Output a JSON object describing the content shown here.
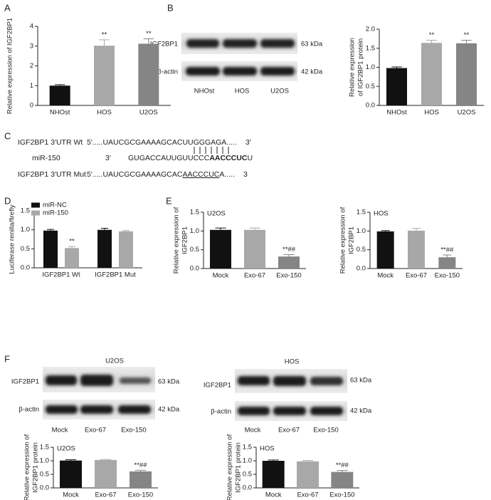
{
  "panel_labels": [
    "A",
    "B",
    "C",
    "D",
    "E",
    "F"
  ],
  "blot_b": {
    "rows": [
      "IGF2BP1",
      "β-actin"
    ],
    "sizes": [
      "63 kDa",
      "42 kDa"
    ],
    "lanes": [
      "NHOst",
      "HOS",
      "U2OS"
    ]
  },
  "blot_f": [
    {
      "title": "U2OS",
      "rows": [
        "IGF2BP1",
        "β-actin"
      ],
      "sizes": [
        "63 kDa",
        "42 kDa"
      ],
      "lanes": [
        "Mock",
        "Exo-67",
        "Exo-150"
      ]
    },
    {
      "title": "HOS",
      "rows": [
        "IGF2BP1",
        "β-actin"
      ],
      "sizes": [
        "63 kDa",
        "42 kDa"
      ],
      "lanes": [
        "Mock",
        "Exo-67",
        "Exo-150"
      ]
    }
  ],
  "sequences": {
    "wt": {
      "name": "IGF2BP1 3'UTR Wt",
      "five": "5'",
      "seq": ".....UAUCGCGAAAAGCACUUGGGAGA.....",
      "three": "3'"
    },
    "mir": {
      "name": "miR-150",
      "three": "3'",
      "seq": "GUGACCAUUGUUCCC",
      "seed": "AACCCUC",
      "tail": "U"
    },
    "mut": {
      "name": "IGF2BP1 3'UTR Mut",
      "five": "5'",
      "seq": ".....UAUCGCGAAAAGCAC",
      "site": "AACCCUC",
      "tail": "A.....",
      "three": "3"
    }
  },
  "chart_data": [
    {
      "type": "bar",
      "ylabel": [
        "Relative expression of IGF2BP1"
      ],
      "categories": [
        "NHOst",
        "HOS",
        "U2OS"
      ],
      "values": [
        1.0,
        3.02,
        3.12
      ],
      "errors": [
        0.05,
        0.3,
        0.25
      ],
      "colors": [
        "#111111",
        "#a8a8a8",
        "#858585"
      ],
      "significance": [
        null,
        "**",
        "**"
      ],
      "ylim": [
        0,
        4
      ],
      "yticks": [
        0,
        1,
        2,
        3,
        4
      ]
    },
    {
      "type": "bar",
      "ylabel": [
        "Relative expression",
        "of IGF2BP1 protein"
      ],
      "categories": [
        "NHOst",
        "HOS",
        "U2OS"
      ],
      "values": [
        0.98,
        1.64,
        1.63
      ],
      "errors": [
        0.03,
        0.07,
        0.08
      ],
      "colors": [
        "#111111",
        "#a8a8a8",
        "#858585"
      ],
      "significance": [
        null,
        "**",
        "**"
      ],
      "ylim": [
        0,
        2
      ],
      "yticks": [
        {
          "value": 0,
          "label": "0.0"
        },
        0.5,
        {
          "value": 1,
          "label": "1.0"
        },
        1.5,
        {
          "value": 2,
          "label": "2.0"
        }
      ]
    },
    {
      "type": "bar",
      "ylabel": [
        "Luciferase renilla/firefly"
      ],
      "categories": [
        "IGF2BP1 Wt",
        "IGF2BP1 Mut"
      ],
      "series": [
        {
          "name": "miR-NC",
          "color": "#111111",
          "values": [
            0.98,
            1.0
          ],
          "errors": [
            0.03,
            0.04
          ],
          "significance": [
            null,
            null
          ]
        },
        {
          "name": "miR-150",
          "color": "#a8a8a8",
          "values": [
            0.52,
            0.96
          ],
          "errors": [
            0.04,
            0.02
          ],
          "significance": [
            "**",
            null
          ]
        }
      ],
      "legend": "top-left",
      "ylim": [
        0,
        1.5
      ],
      "yticks": [
        {
          "value": 0,
          "label": "0.0"
        },
        0.5,
        {
          "value": 1,
          "label": "1.0"
        },
        1.5
      ]
    },
    {
      "type": "bar",
      "title": "U2OS",
      "ylabel": [
        "Relative expression of",
        "IGF2BP1"
      ],
      "categories": [
        "Mock",
        "Exo-67",
        "Exo-150"
      ],
      "values": [
        1.03,
        1.03,
        0.32
      ],
      "errors": [
        0.05,
        0.05,
        0.05
      ],
      "colors": [
        "#111111",
        "#a8a8a8",
        "#858585"
      ],
      "significance": [
        null,
        null,
        "**##"
      ],
      "ylim": [
        0,
        1.5
      ],
      "yticks": [
        {
          "value": 0,
          "label": "0.0"
        },
        0.5,
        {
          "value": 1,
          "label": "1.0"
        },
        1.5
      ]
    },
    {
      "type": "bar",
      "title": "HOS",
      "ylabel": [
        "Relative expression of",
        "IGF2BP1"
      ],
      "categories": [
        "Mock",
        "Exo-67",
        "Exo-150"
      ],
      "values": [
        0.99,
        1.01,
        0.3
      ],
      "errors": [
        0.02,
        0.06,
        0.06
      ],
      "colors": [
        "#111111",
        "#a8a8a8",
        "#858585"
      ],
      "significance": [
        null,
        null,
        "**##"
      ],
      "ylim": [
        0,
        1.5
      ],
      "yticks": [
        {
          "value": 0,
          "label": "0.0"
        },
        0.5,
        {
          "value": 1,
          "label": "1.0"
        },
        1.5
      ]
    },
    {
      "type": "bar",
      "title": "U2OS",
      "ylabel": [
        "Relative expression of",
        "IGF2BP1 protein"
      ],
      "categories": [
        "Mock",
        "Exo-67",
        "Exo-150"
      ],
      "values": [
        1.01,
        1.03,
        0.61
      ],
      "errors": [
        0.03,
        0.02,
        0.04
      ],
      "colors": [
        "#111111",
        "#a8a8a8",
        "#858585"
      ],
      "significance": [
        null,
        null,
        "**##"
      ],
      "ylim": [
        0,
        1.5
      ],
      "yticks": [
        {
          "value": 0,
          "label": "0.0"
        },
        0.5,
        {
          "value": 1,
          "label": "1.0"
        },
        1.5
      ]
    },
    {
      "type": "bar",
      "title": "HOS",
      "ylabel": [
        "Relative expression of",
        "IGF2BP1 protein"
      ],
      "categories": [
        "Mock",
        "Exo-67",
        "Exo-150"
      ],
      "values": [
        1.0,
        0.98,
        0.59
      ],
      "errors": [
        0.03,
        0.03,
        0.05
      ],
      "colors": [
        "#111111",
        "#a8a8a8",
        "#858585"
      ],
      "significance": [
        null,
        null,
        "**##"
      ],
      "ylim": [
        0,
        1.5
      ],
      "yticks": [
        {
          "value": 0,
          "label": "0.0"
        },
        0.5,
        {
          "value": 1,
          "label": "1.0"
        },
        1.5
      ]
    }
  ]
}
